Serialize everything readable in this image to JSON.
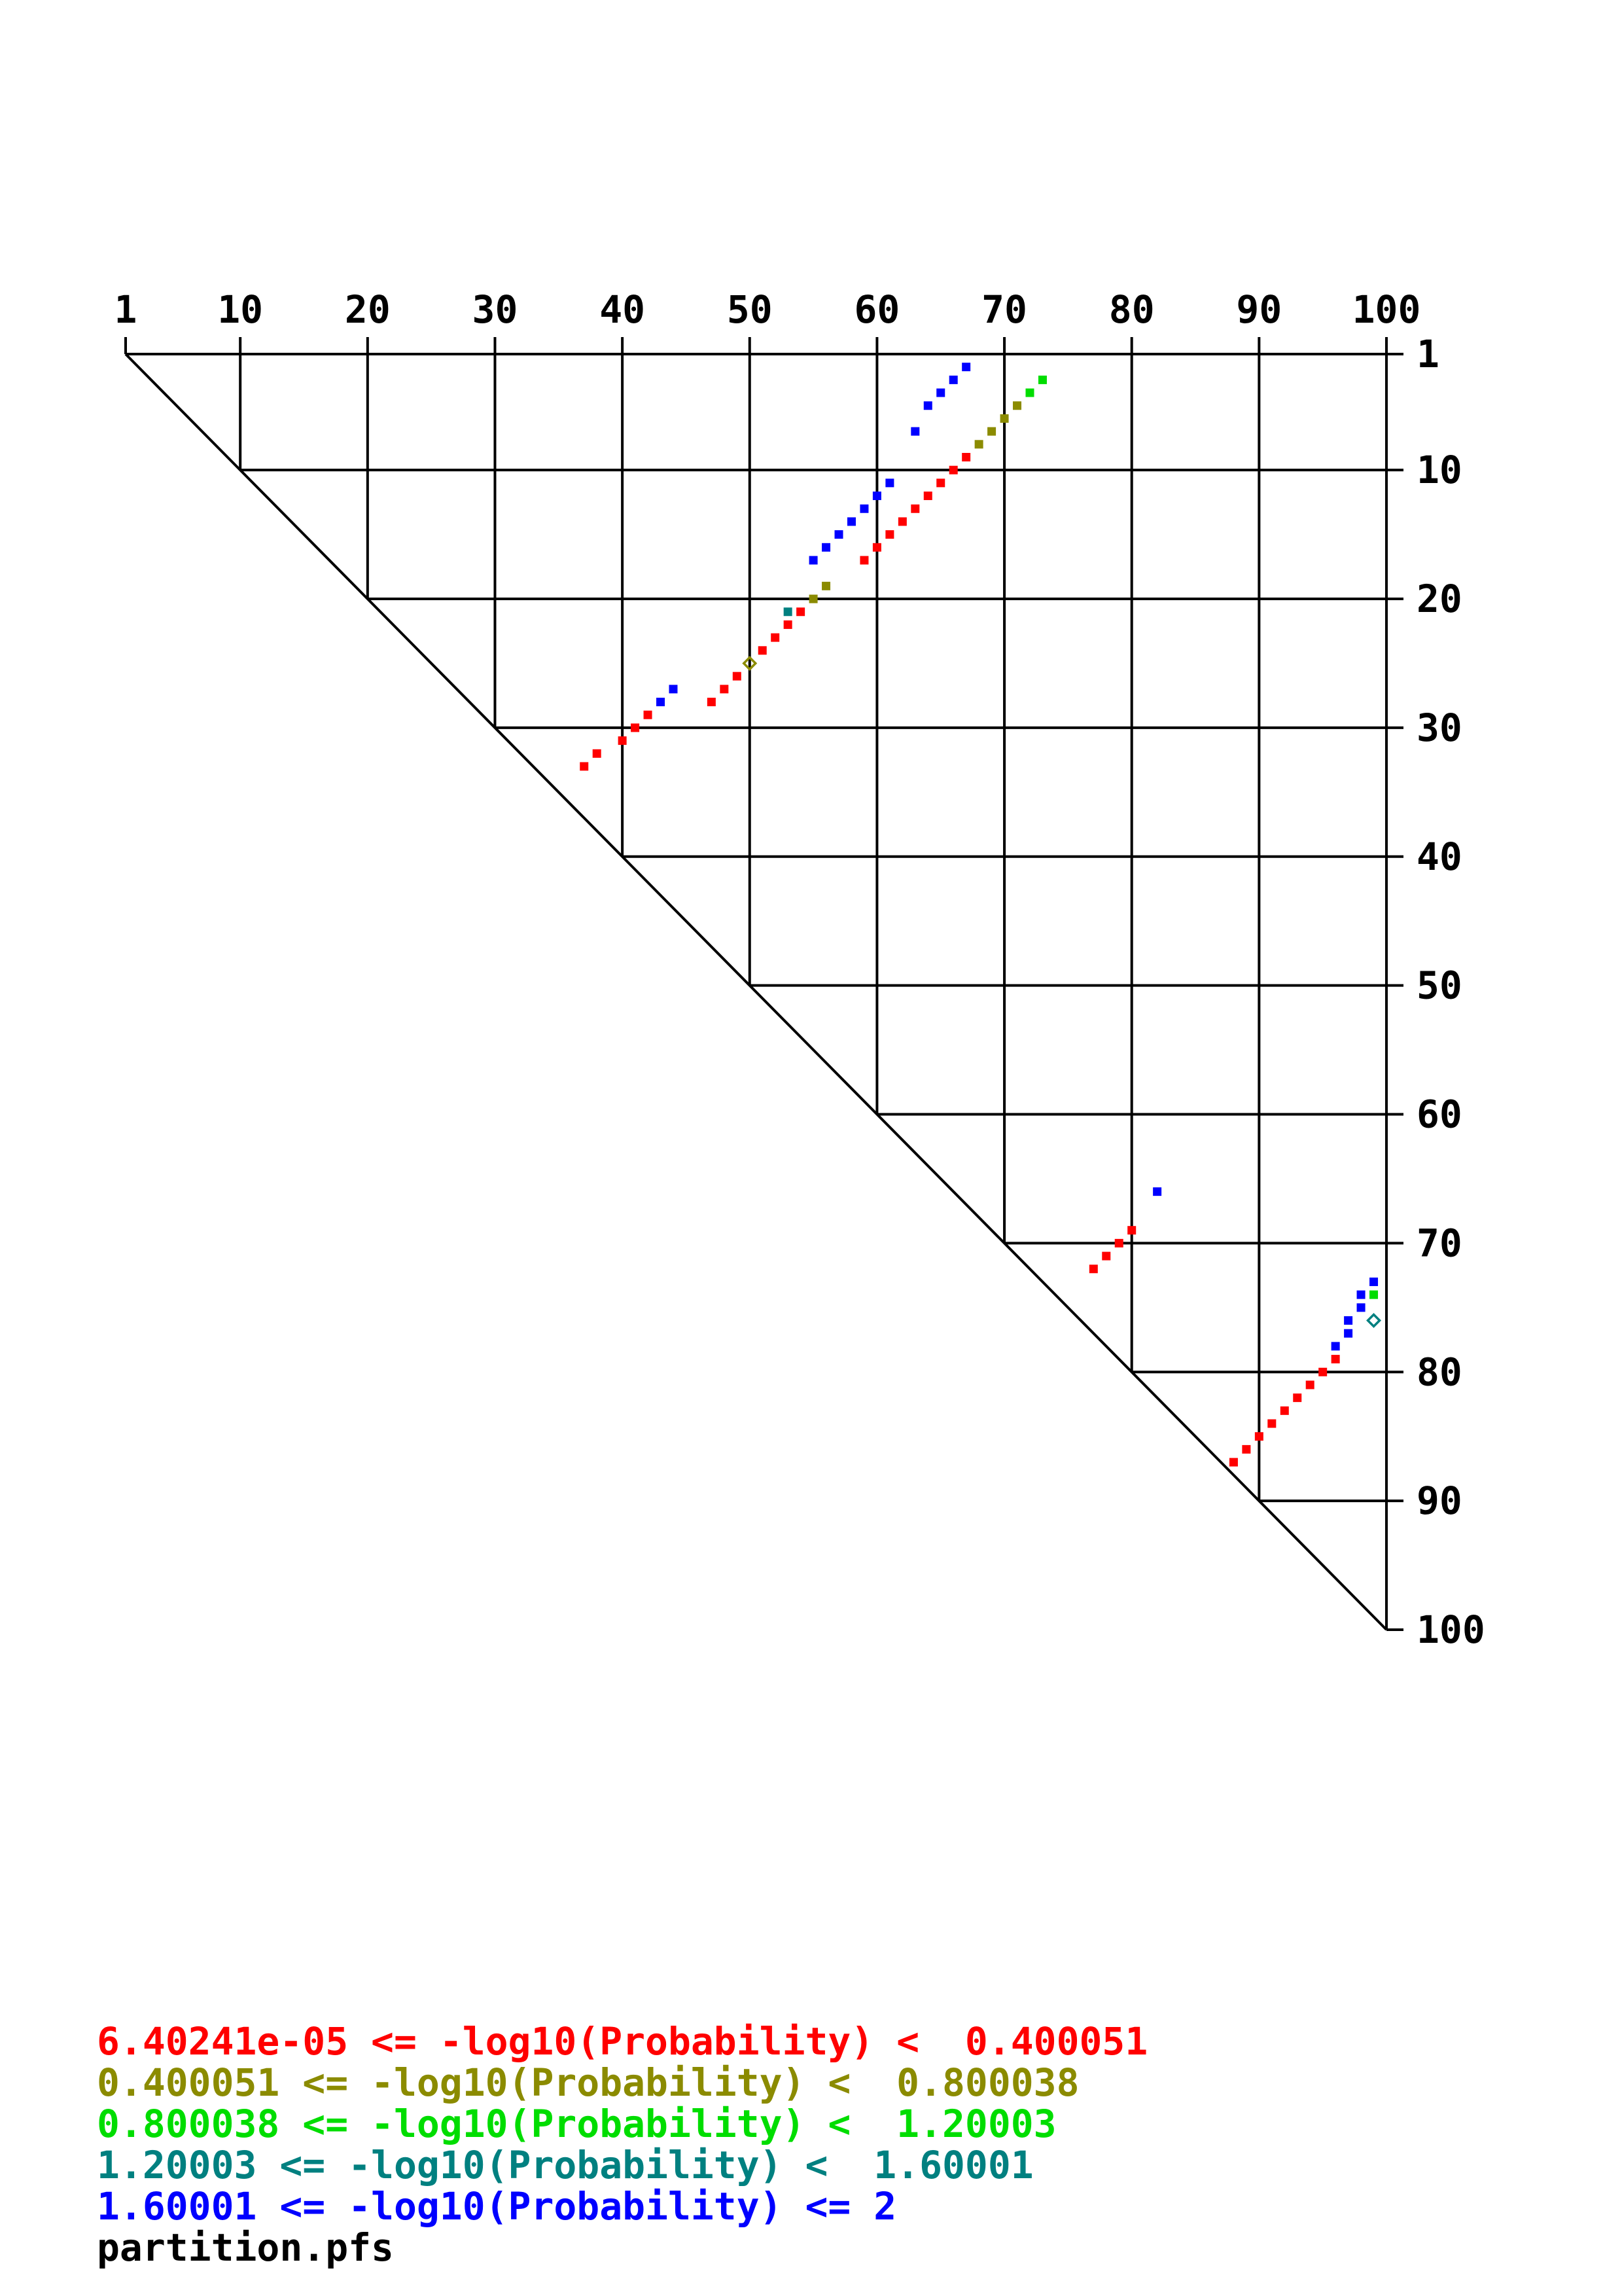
{
  "chart_data": {
    "type": "scatter",
    "subtype": "triangular-base-pair-probability-dot-plot",
    "title": "",
    "grid": true,
    "x_axis": {
      "side": "top",
      "range": [
        1,
        100
      ],
      "ticks": [
        1,
        10,
        20,
        30,
        40,
        50,
        60,
        70,
        80,
        90,
        100
      ]
    },
    "y_axis": {
      "side": "right",
      "range": [
        1,
        100
      ],
      "ticks": [
        1,
        10,
        20,
        30,
        40,
        50,
        60,
        70,
        80,
        90,
        100
      ]
    },
    "colors": {
      "red": "#ff0000",
      "olive": "#8b8b00",
      "green": "#00dd00",
      "teal": "#008080",
      "blue": "#0000ff",
      "black": "#000000",
      "axis": "#000000"
    },
    "legend": [
      {
        "color": "red",
        "text": "6.40241e-05 <= -log10(Probability) <  0.400051"
      },
      {
        "color": "olive",
        "text": "0.400051 <= -log10(Probability) <  0.800038"
      },
      {
        "color": "green",
        "text": "0.800038 <= -log10(Probability) <  1.20003"
      },
      {
        "color": "teal",
        "text": "1.20003 <= -log10(Probability) <  1.60001"
      },
      {
        "color": "blue",
        "text": "1.60001 <= -log10(Probability) <= 2"
      },
      {
        "color": "black",
        "text": "partition.pfs"
      }
    ],
    "points": [
      {
        "x": 73,
        "y": 3,
        "c": "green"
      },
      {
        "x": 72,
        "y": 4,
        "c": "green"
      },
      {
        "x": 71,
        "y": 5,
        "c": "olive"
      },
      {
        "x": 70,
        "y": 6,
        "c": "olive"
      },
      {
        "x": 69,
        "y": 7,
        "c": "olive"
      },
      {
        "x": 68,
        "y": 8,
        "c": "olive"
      },
      {
        "x": 67,
        "y": 9,
        "c": "red"
      },
      {
        "x": 66,
        "y": 10,
        "c": "red"
      },
      {
        "x": 65,
        "y": 11,
        "c": "red"
      },
      {
        "x": 64,
        "y": 12,
        "c": "red"
      },
      {
        "x": 63,
        "y": 13,
        "c": "red"
      },
      {
        "x": 62,
        "y": 14,
        "c": "red"
      },
      {
        "x": 61,
        "y": 15,
        "c": "red"
      },
      {
        "x": 60,
        "y": 16,
        "c": "red"
      },
      {
        "x": 59,
        "y": 17,
        "c": "red"
      },
      {
        "x": 67,
        "y": 2,
        "c": "blue"
      },
      {
        "x": 66,
        "y": 3,
        "c": "blue"
      },
      {
        "x": 65,
        "y": 4,
        "c": "blue"
      },
      {
        "x": 64,
        "y": 5,
        "c": "blue"
      },
      {
        "x": 63,
        "y": 7,
        "c": "blue"
      },
      {
        "x": 61,
        "y": 11,
        "c": "blue"
      },
      {
        "x": 60,
        "y": 12,
        "c": "blue"
      },
      {
        "x": 59,
        "y": 13,
        "c": "blue"
      },
      {
        "x": 58,
        "y": 14,
        "c": "blue"
      },
      {
        "x": 57,
        "y": 15,
        "c": "blue"
      },
      {
        "x": 56,
        "y": 16,
        "c": "blue"
      },
      {
        "x": 55,
        "y": 17,
        "c": "blue"
      },
      {
        "x": 56,
        "y": 19,
        "c": "olive"
      },
      {
        "x": 55,
        "y": 20,
        "c": "olive"
      },
      {
        "x": 54,
        "y": 21,
        "c": "red"
      },
      {
        "x": 53,
        "y": 21,
        "c": "teal"
      },
      {
        "x": 53,
        "y": 22,
        "c": "red"
      },
      {
        "x": 52,
        "y": 23,
        "c": "red"
      },
      {
        "x": 51,
        "y": 24,
        "c": "red"
      },
      {
        "x": 50,
        "y": 25,
        "c": "olive",
        "shape": "diamond"
      },
      {
        "x": 49,
        "y": 26,
        "c": "red"
      },
      {
        "x": 48,
        "y": 27,
        "c": "red"
      },
      {
        "x": 47,
        "y": 28,
        "c": "red"
      },
      {
        "x": 44,
        "y": 27,
        "c": "blue"
      },
      {
        "x": 43,
        "y": 28,
        "c": "blue"
      },
      {
        "x": 42,
        "y": 29,
        "c": "red"
      },
      {
        "x": 41,
        "y": 30,
        "c": "red"
      },
      {
        "x": 40,
        "y": 31,
        "c": "red"
      },
      {
        "x": 38,
        "y": 32,
        "c": "red"
      },
      {
        "x": 37,
        "y": 33,
        "c": "red"
      },
      {
        "x": 82,
        "y": 66,
        "c": "blue"
      },
      {
        "x": 80,
        "y": 69,
        "c": "red"
      },
      {
        "x": 79,
        "y": 70,
        "c": "red"
      },
      {
        "x": 78,
        "y": 71,
        "c": "red"
      },
      {
        "x": 77,
        "y": 72,
        "c": "red"
      },
      {
        "x": 99,
        "y": 73,
        "c": "blue"
      },
      {
        "x": 99,
        "y": 74,
        "c": "green"
      },
      {
        "x": 98,
        "y": 74,
        "c": "blue"
      },
      {
        "x": 98,
        "y": 75,
        "c": "blue"
      },
      {
        "x": 99,
        "y": 76,
        "c": "teal",
        "shape": "diamond"
      },
      {
        "x": 97,
        "y": 76,
        "c": "blue"
      },
      {
        "x": 97,
        "y": 77,
        "c": "blue"
      },
      {
        "x": 96,
        "y": 78,
        "c": "blue"
      },
      {
        "x": 96,
        "y": 79,
        "c": "red"
      },
      {
        "x": 95,
        "y": 80,
        "c": "red"
      },
      {
        "x": 94,
        "y": 81,
        "c": "red"
      },
      {
        "x": 93,
        "y": 82,
        "c": "red"
      },
      {
        "x": 92,
        "y": 83,
        "c": "red"
      },
      {
        "x": 91,
        "y": 84,
        "c": "red"
      },
      {
        "x": 90,
        "y": 85,
        "c": "red"
      },
      {
        "x": 89,
        "y": 86,
        "c": "red"
      },
      {
        "x": 88,
        "y": 87,
        "c": "red"
      }
    ]
  }
}
